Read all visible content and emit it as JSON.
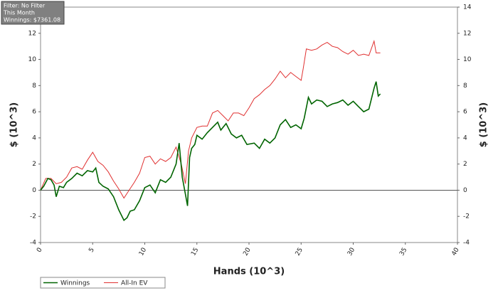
{
  "chart_data": {
    "type": "line",
    "annotations": [
      "Filter: No Filter",
      "This Month",
      "Winnings: $7361.08"
    ],
    "xlabel": "Hands (10^3)",
    "ylabel": "$ (10^3)",
    "y2label": "$ (10^3)",
    "xlim": [
      0,
      40
    ],
    "xticks": [
      0,
      5,
      10,
      15,
      20,
      25,
      30,
      35,
      40
    ],
    "ylim": [
      -4,
      14
    ],
    "yticks": [
      -4,
      -2,
      0,
      2,
      4,
      6,
      8,
      10,
      12,
      14
    ],
    "y2lim": [
      -4,
      14
    ],
    "y2ticks": [
      -4,
      -2,
      0,
      2,
      4,
      6,
      8,
      10,
      12,
      14
    ],
    "legend": "bottom-left",
    "series": [
      {
        "name": "Winnings",
        "color": "#006400",
        "x": [
          0,
          0.3,
          0.7,
          1,
          1.3,
          1.5,
          1.8,
          2.2,
          2.5,
          3,
          3.5,
          4,
          4.5,
          5,
          5.3,
          5.6,
          6,
          6.5,
          7,
          7.5,
          8,
          8.3,
          8.6,
          9,
          9.5,
          10,
          10.5,
          11,
          11.5,
          12,
          12.5,
          13,
          13.3,
          13.6,
          13.9,
          14.1,
          14.3,
          14.5,
          14.8,
          15,
          15.5,
          16,
          16.5,
          17,
          17.3,
          17.8,
          18.3,
          18.8,
          19.3,
          19.8,
          20.5,
          21,
          21.5,
          22,
          22.5,
          23,
          23.5,
          24,
          24.5,
          25,
          25.3,
          25.7,
          26,
          26.5,
          27,
          27.5,
          28,
          28.5,
          29,
          29.5,
          30,
          30.5,
          31,
          31.5,
          32,
          32.2,
          32.4,
          32.6
        ],
        "values": [
          0,
          0.3,
          0.9,
          0.8,
          0.4,
          -0.5,
          0.3,
          0.2,
          0.6,
          0.9,
          1.3,
          1.1,
          1.5,
          1.4,
          1.7,
          0.6,
          0.3,
          0.1,
          -0.5,
          -1.5,
          -2.3,
          -2.1,
          -1.6,
          -1.5,
          -0.8,
          0.2,
          0.4,
          -0.2,
          0.8,
          0.6,
          1.0,
          2.0,
          3.6,
          1.0,
          -0.3,
          -1.2,
          2.5,
          3.2,
          3.5,
          4.2,
          3.9,
          4.4,
          4.8,
          5.2,
          4.6,
          5.1,
          4.3,
          4.0,
          4.2,
          3.5,
          3.6,
          3.2,
          3.9,
          3.6,
          4.0,
          5.0,
          5.4,
          4.8,
          5.0,
          4.7,
          5.5,
          7.1,
          6.6,
          6.9,
          6.8,
          6.4,
          6.6,
          6.7,
          6.9,
          6.5,
          6.8,
          6.4,
          6.0,
          6.2,
          7.8,
          8.3,
          7.2,
          7.36
        ]
      },
      {
        "name": "All-In EV",
        "color": "#e03030",
        "x": [
          0,
          0.5,
          1,
          1.5,
          2,
          2.5,
          3,
          3.5,
          4,
          4.5,
          5,
          5.5,
          6,
          6.5,
          7,
          7.5,
          8,
          8.5,
          9,
          9.5,
          10,
          10.5,
          11,
          11.5,
          12,
          12.5,
          13,
          13.5,
          13.9,
          14.2,
          14.5,
          15,
          15.5,
          16,
          16.5,
          17,
          17.5,
          18,
          18.5,
          19,
          19.5,
          20,
          20.5,
          21,
          21.5,
          22,
          22.5,
          23,
          23.5,
          24,
          24.5,
          25,
          25.2,
          25.5,
          26,
          26.5,
          27,
          27.5,
          28,
          28.5,
          29,
          29.5,
          30,
          30.5,
          31,
          31.5,
          32,
          32.2,
          32.6
        ],
        "values": [
          0,
          0.9,
          0.9,
          0.5,
          0.6,
          1.0,
          1.7,
          1.8,
          1.6,
          2.3,
          2.9,
          2.2,
          1.9,
          1.4,
          0.7,
          0.1,
          -0.6,
          0.0,
          0.6,
          1.3,
          2.5,
          2.6,
          2.0,
          2.4,
          2.2,
          2.5,
          3.3,
          2.0,
          0.5,
          3.0,
          4.0,
          4.8,
          4.9,
          4.9,
          5.9,
          6.1,
          5.7,
          5.3,
          5.9,
          5.9,
          5.7,
          6.3,
          7.0,
          7.3,
          7.7,
          8.0,
          8.5,
          9.1,
          8.6,
          9.0,
          8.7,
          8.4,
          9.3,
          10.8,
          10.7,
          10.8,
          11.1,
          11.3,
          11.0,
          10.9,
          10.6,
          10.4,
          10.7,
          10.3,
          10.4,
          10.3,
          11.4,
          10.5,
          10.5
        ]
      }
    ]
  }
}
